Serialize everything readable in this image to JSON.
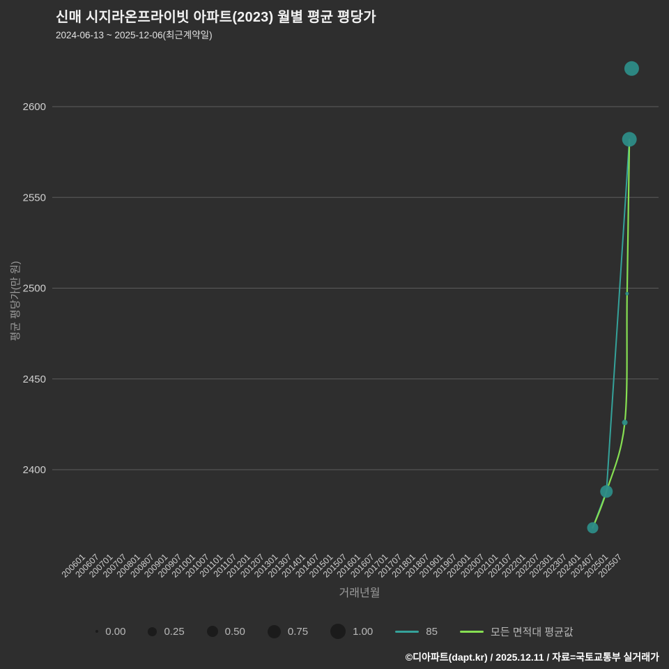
{
  "header": {
    "title": "신매 시지라온프라이빗 아파트(2023) 월별 평균 평당가",
    "subtitle": "2024-06-13 ~ 2025-12-06(최근계약일)"
  },
  "chart_data": {
    "type": "scatter",
    "title": "신매 시지라온프라이빗 아파트(2023) 월별 평균 평당가",
    "subtitle": "2024-06-13 ~ 2025-12-06(최근계약일)",
    "xlabel": "거래년월",
    "ylabel": "평균 평당가(만 원)",
    "grid": "horizontal",
    "ylim": [
      2350,
      2640
    ],
    "y_ticks": [
      2400,
      2450,
      2500,
      2550,
      2600
    ],
    "x_ticks": [
      "200601",
      "200607",
      "200701",
      "200707",
      "200801",
      "200807",
      "200901",
      "200907",
      "201001",
      "201007",
      "201101",
      "201107",
      "201201",
      "201207",
      "201301",
      "201307",
      "201401",
      "201407",
      "201501",
      "201507",
      "201601",
      "201607",
      "201701",
      "201707",
      "201801",
      "201807",
      "201901",
      "201907",
      "202001",
      "202007",
      "202101",
      "202107",
      "202201",
      "202207",
      "202301",
      "202307",
      "202401",
      "202407",
      "202501",
      "202507"
    ],
    "scatter": {
      "name": "85",
      "color": "#2d8c87",
      "points": [
        {
          "month": "202407",
          "value": 2368,
          "size": 0.5,
          "r": 8
        },
        {
          "month": "202501",
          "value": 2388,
          "size": 0.65,
          "r": 9
        },
        {
          "month": "202509",
          "value": 2426,
          "size": 0.08,
          "r": 4
        },
        {
          "month": "202510",
          "value": 2497,
          "size": 0.03,
          "r": 2.5
        },
        {
          "month": "202511",
          "value": 2582,
          "size": 0.9,
          "r": 10.5
        },
        {
          "month": "202512",
          "value": 2621,
          "size": 0.9,
          "r": 10.5
        }
      ]
    },
    "lines": [
      {
        "name": "85",
        "color": "#35a29a",
        "width": 2,
        "smooth": false,
        "points": [
          [
            "202407",
            2368
          ],
          [
            "202501",
            2388
          ],
          [
            "202511",
            2582
          ]
        ]
      },
      {
        "name": "모든 면적대 평균값",
        "color": "#86df52",
        "width": 2.2,
        "smooth": true,
        "points": [
          [
            "202407",
            2368
          ],
          [
            "202501",
            2388
          ],
          [
            "202509",
            2426
          ],
          [
            "202510",
            2497
          ],
          [
            "202511",
            2582
          ]
        ]
      }
    ],
    "legend_position": "bottom"
  },
  "legend": {
    "sizes": [
      {
        "label": "0.00",
        "r": 2
      },
      {
        "label": "0.25",
        "r": 6.5
      },
      {
        "label": "0.50",
        "r": 8
      },
      {
        "label": "0.75",
        "r": 9.5
      },
      {
        "label": "1.00",
        "r": 11
      }
    ],
    "series": [
      {
        "label": "85",
        "color": "#35a29a"
      },
      {
        "label": "모든 면적대 평균값",
        "color": "#86df52"
      }
    ]
  },
  "footer": {
    "credit": "©디아파트(dapt.kr) / 2025.12.11 / 자료=국토교통부 실거래가"
  },
  "colors": {
    "background": "#2e2e2e",
    "grid": "#5d5d5d",
    "tick_label": "#d0d0d0",
    "axis_label": "#9c9c9c",
    "teal": "#35a29a",
    "green": "#86df52"
  }
}
